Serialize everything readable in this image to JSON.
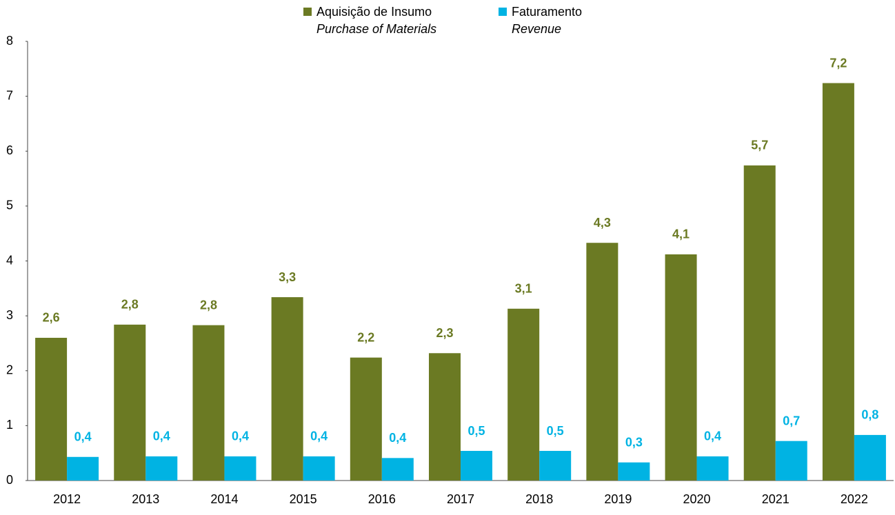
{
  "chart_data": {
    "type": "bar",
    "categories": [
      "2012",
      "2013",
      "2014",
      "2015",
      "2016",
      "2017",
      "2018",
      "2019",
      "2020",
      "2021",
      "2022"
    ],
    "series": [
      {
        "name": "Aquisição de Insumo",
        "subname": "Purchase of Materials",
        "color": "#6b7a23",
        "values": [
          2.6,
          2.84,
          2.83,
          3.34,
          2.24,
          2.32,
          3.13,
          4.33,
          4.12,
          5.74,
          7.24
        ],
        "value_labels": [
          "2,6",
          "2,8",
          "2,8",
          "3,3",
          "2,2",
          "2,3",
          "3,1",
          "4,3",
          "4,1",
          "5,7",
          "7,2"
        ]
      },
      {
        "name": "Faturamento",
        "subname": "Revenue",
        "color": "#00b3e3",
        "values": [
          0.43,
          0.44,
          0.44,
          0.44,
          0.41,
          0.54,
          0.54,
          0.33,
          0.44,
          0.72,
          0.83
        ],
        "value_labels": [
          "0,4",
          "0,4",
          "0,4",
          "0,4",
          "0,4",
          "0,5",
          "0,5",
          "0,3",
          "0,4",
          "0,7",
          "0,8"
        ]
      }
    ],
    "ylim": [
      0,
      8
    ],
    "yticks": [
      0,
      1,
      2,
      3,
      4,
      5,
      6,
      7,
      8
    ],
    "grid": false
  }
}
